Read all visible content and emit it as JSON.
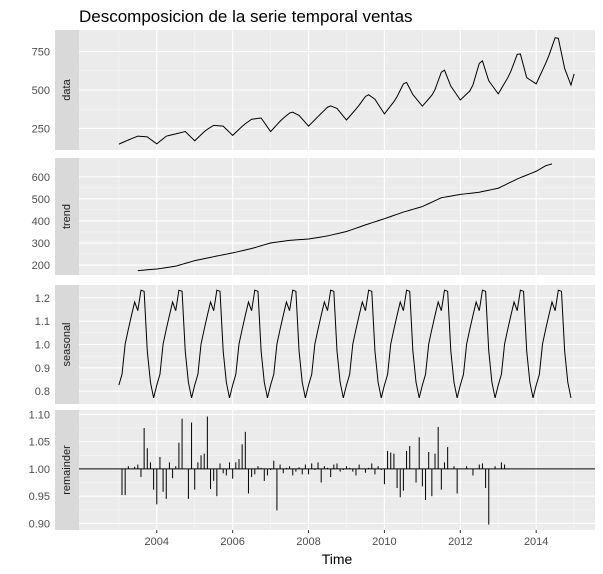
{
  "chart_data": {
    "type": "line",
    "title": "Descomposicion de la serie temporal ventas",
    "xlabel": "Time",
    "xlim": [
      2001.95,
      2015.55
    ],
    "x_ticks": [
      2004,
      2006,
      2008,
      2010,
      2012,
      2014
    ],
    "x_tick_labels": [
      "2004",
      "2006",
      "2008",
      "2010",
      "2012",
      "2014"
    ],
    "grid": true,
    "legend": "none",
    "x_start": 2003.0,
    "x_step": 0.0833333,
    "panels": [
      {
        "name": "data",
        "label": "data",
        "ylim": [
          110,
          890
        ],
        "y_ticks": [
          250,
          500,
          750
        ],
        "y_tick_labels": [
          "250",
          "500",
          "750"
        ],
        "style": "line",
        "keypoints": [
          [
            2003.0,
            148
          ],
          [
            2003.25,
            175
          ],
          [
            2003.5,
            200
          ],
          [
            2003.75,
            195
          ],
          [
            2004.0,
            150
          ],
          [
            2004.25,
            200
          ],
          [
            2004.5,
            215
          ],
          [
            2004.75,
            230
          ],
          [
            2005.0,
            170
          ],
          [
            2005.3,
            240
          ],
          [
            2005.5,
            270
          ],
          [
            2005.75,
            265
          ],
          [
            2006.0,
            205
          ],
          [
            2006.3,
            275
          ],
          [
            2006.5,
            310
          ],
          [
            2006.75,
            318
          ],
          [
            2007.0,
            230
          ],
          [
            2007.3,
            310
          ],
          [
            2007.55,
            360
          ],
          [
            2007.75,
            335
          ],
          [
            2008.0,
            265
          ],
          [
            2008.3,
            340
          ],
          [
            2008.55,
            400
          ],
          [
            2008.75,
            380
          ],
          [
            2009.0,
            305
          ],
          [
            2009.3,
            390
          ],
          [
            2009.55,
            475
          ],
          [
            2009.75,
            440
          ],
          [
            2010.0,
            345
          ],
          [
            2010.3,
            440
          ],
          [
            2010.55,
            565
          ],
          [
            2010.75,
            470
          ],
          [
            2011.0,
            395
          ],
          [
            2011.3,
            480
          ],
          [
            2011.55,
            650
          ],
          [
            2011.75,
            525
          ],
          [
            2012.0,
            435
          ],
          [
            2012.3,
            505
          ],
          [
            2012.55,
            715
          ],
          [
            2012.75,
            560
          ],
          [
            2013.0,
            475
          ],
          [
            2013.3,
            600
          ],
          [
            2013.55,
            765
          ],
          [
            2013.75,
            580
          ],
          [
            2014.0,
            540
          ],
          [
            2014.3,
            700
          ],
          [
            2014.55,
            875
          ],
          [
            2014.75,
            640
          ],
          [
            2014.92,
            530
          ],
          [
            2015.0,
            605
          ]
        ]
      },
      {
        "name": "trend",
        "label": "trend",
        "ylim": [
          155,
          685
        ],
        "y_ticks": [
          200,
          300,
          400,
          500,
          600
        ],
        "y_tick_labels": [
          "200",
          "300",
          "400",
          "500",
          "600"
        ],
        "style": "line",
        "keypoints": [
          [
            2003.5,
            175
          ],
          [
            2004.0,
            182
          ],
          [
            2004.5,
            195
          ],
          [
            2005.0,
            220
          ],
          [
            2005.5,
            238
          ],
          [
            2006.0,
            255
          ],
          [
            2006.5,
            275
          ],
          [
            2007.0,
            300
          ],
          [
            2007.5,
            312
          ],
          [
            2008.0,
            318
          ],
          [
            2008.5,
            332
          ],
          [
            2009.0,
            352
          ],
          [
            2009.5,
            382
          ],
          [
            2010.0,
            410
          ],
          [
            2010.5,
            440
          ],
          [
            2011.0,
            465
          ],
          [
            2011.5,
            505
          ],
          [
            2012.0,
            520
          ],
          [
            2012.5,
            530
          ],
          [
            2013.0,
            548
          ],
          [
            2013.5,
            590
          ],
          [
            2014.0,
            625
          ],
          [
            2014.25,
            650
          ],
          [
            2014.45,
            660
          ]
        ]
      },
      {
        "name": "seasonal",
        "label": "seasonal",
        "ylim": [
          0.745,
          1.255
        ],
        "y_ticks": [
          0.8,
          0.9,
          1.0,
          1.1,
          1.2
        ],
        "y_tick_labels": [
          "0.8",
          "0.9",
          "1.0",
          "1.1",
          "1.2"
        ],
        "style": "line",
        "monthly_pattern": [
          0.826,
          0.872,
          1.002,
          1.065,
          1.125,
          1.182,
          1.145,
          1.233,
          1.228,
          0.972,
          0.838,
          0.771
        ],
        "years": 12
      },
      {
        "name": "remainder",
        "label": "remainder",
        "ylim": [
          0.888,
          1.108
        ],
        "y_ticks": [
          0.9,
          0.95,
          1.0,
          1.05,
          1.1
        ],
        "y_tick_labels": [
          "0.90",
          "0.95",
          "1.00",
          "1.05",
          "1.10"
        ],
        "style": "bars",
        "baseline": 1.0,
        "values": [
          1.0,
          0.952,
          0.952,
          1.005,
          1.0,
          1.004,
          1.008,
          0.985,
          1.075,
          1.038,
          1.012,
          0.962,
          0.935,
          1.022,
          0.958,
          0.945,
          1.012,
          0.983,
          1.005,
          1.048,
          1.092,
          1.0,
          0.945,
          1.085,
          0.962,
          1.012,
          1.025,
          1.028,
          1.096,
          0.963,
          0.978,
          0.95,
          1.01,
          0.992,
          0.988,
          1.012,
          0.982,
          1.012,
          1.018,
          1.045,
          1.068,
          0.955,
          0.985,
          0.99,
          1.005,
          1.002,
          0.978,
          0.988,
          0.998,
          1.015,
          0.924,
          1.008,
          0.992,
          1.002,
          1.005,
          0.988,
          0.995,
          1.003,
          0.99,
          1.008,
          0.99,
          1.01,
          0.998,
          1.012,
          0.975,
          1.005,
          1.002,
          0.985,
          1.008,
          1.01,
          0.995,
          0.998,
          1.005,
          1.002,
          0.995,
          0.988,
          1.008,
          1.0,
          0.993,
          1.002,
          1.01,
          0.99,
          1.005,
          0.998,
          0.972,
          1.033,
          1.03,
          1.028,
          0.965,
          0.948,
          0.96,
          1.033,
          1.042,
          1.0,
          0.975,
          1.058,
          0.968,
          0.943,
          1.031,
          0.95,
          1.028,
          1.077,
          0.962,
          1.012,
          1.04,
          1.0,
          1.005,
          0.955,
          1.0,
          1.0,
          1.005,
          1.0,
          0.988,
          1.0,
          1.008,
          1.01,
          0.965,
          0.898,
          1.0,
          1.005,
          1.0,
          1.012,
          1.008,
          1.0
        ]
      }
    ]
  }
}
